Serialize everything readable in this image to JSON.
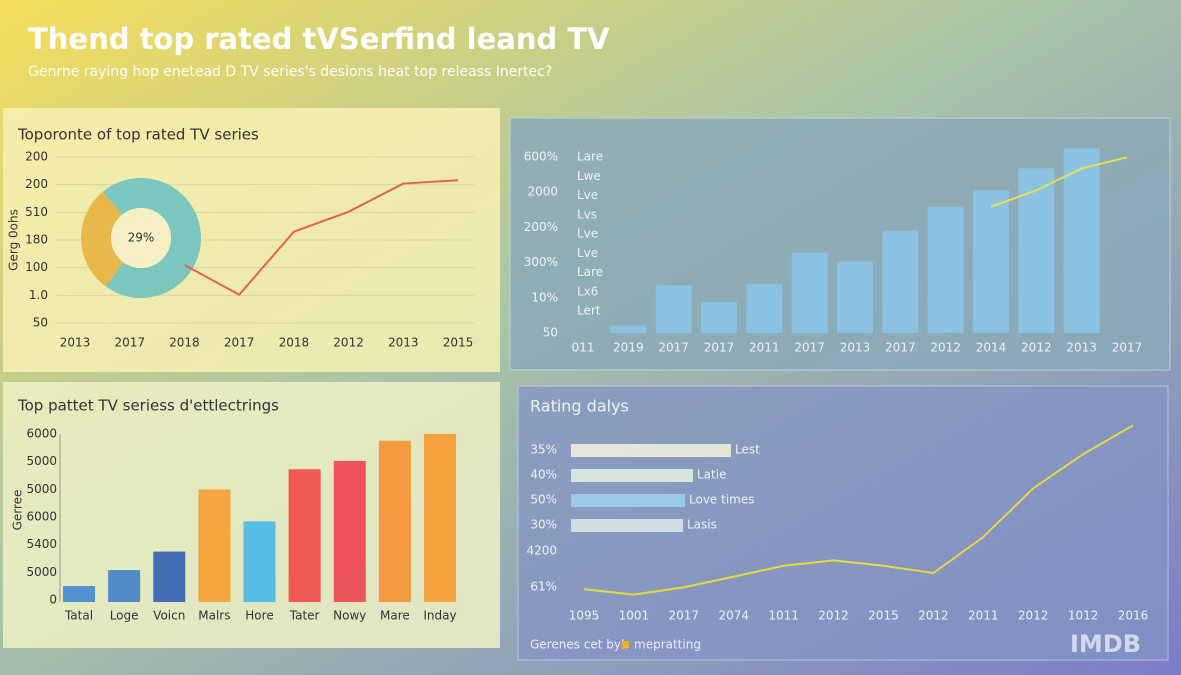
{
  "title": "Thend top rated tVSerfind leand TV",
  "subtitle": "Genrne raying hop enetead D TV series's desions heat top releass Inertec?",
  "footer": {
    "text": "Gerenes cet byl:",
    "legend": "mepratting",
    "color": "#f0b030"
  },
  "brand": "IMDB",
  "chart_data": [
    {
      "type": "line",
      "title": "Toporonte of top rated TV series",
      "y_label": "Gerg 0ohs",
      "y_labels": [
        "200",
        "200",
        "510",
        "180",
        "100",
        "1.0",
        "50"
      ],
      "categories": [
        "2013",
        "2017",
        "2018",
        "2017",
        "2018",
        "2012",
        "2013",
        "2015"
      ],
      "values": [
        null,
        null,
        35,
        17,
        55,
        67,
        84,
        86
      ],
      "color": "#e8604a",
      "ylim": [
        0,
        100
      ],
      "grid": true,
      "donut": {
        "values": [
          29,
          71
        ],
        "colors": [
          "#e8b84a",
          "#7cc6c0"
        ],
        "label": "29%"
      }
    },
    {
      "type": "bar",
      "y_labels": [
        "600%",
        "2000",
        "200%",
        "300%",
        "10%",
        "50"
      ],
      "side_labels": [
        "Lare",
        "Lwe",
        "Lve",
        "Lvs",
        "Lve",
        "Lve",
        "Lare",
        "Lx6",
        "Lert"
      ],
      "categories": [
        "011",
        "2019",
        "2017",
        "2017",
        "2011",
        "2017",
        "2013",
        "2017",
        "2012",
        "2014",
        "2012",
        "2013",
        "2017"
      ],
      "values": [
        null,
        4,
        26,
        17,
        27,
        44,
        39,
        56,
        69,
        78,
        90,
        101,
        null
      ],
      "color": "#8cc4e6",
      "ylim": [
        0,
        105
      ],
      "line": {
        "values": [
          null,
          null,
          null,
          null,
          null,
          null,
          null,
          null,
          null,
          69,
          78,
          90,
          96
        ],
        "color": "#e8e050"
      }
    },
    {
      "type": "bar",
      "title": "Top pattet TV seriess d'ettlectrings",
      "y_label": "Gerree",
      "y_labels": [
        "6000",
        "5000",
        "5000",
        "6000",
        "5400",
        "5000",
        "0"
      ],
      "categories": [
        "Tatal",
        "Loge",
        "Voicn",
        "Malrs",
        "Hore",
        "Tater",
        "Nowy",
        "Mare",
        "Inday"
      ],
      "values": [
        9.5,
        19,
        30,
        67,
        48,
        79,
        84,
        96,
        100
      ],
      "ylim": [
        0,
        100
      ],
      "colors": [
        "#3f88d0",
        "#3f7fc8",
        "#2f5fb0",
        "#f5a030",
        "#45b8e8",
        "#f04848",
        "#f04450",
        "#f59030",
        "#f59a30"
      ]
    },
    {
      "type": "line",
      "title": "Rating dalys",
      "y_labels": [
        "4200",
        "61%"
      ],
      "categories": [
        "1095",
        "1001",
        "2017",
        "2074",
        "1011",
        "2012",
        "2015",
        "2012",
        "2011",
        "2012",
        "1012",
        "2016"
      ],
      "values": [
        6,
        3,
        7,
        13,
        19,
        22,
        19,
        15,
        35,
        62,
        81,
        97
      ],
      "color": "#e8d840",
      "ylim": [
        0,
        100
      ],
      "hbars": {
        "labels": [
          "35%",
          "40%",
          "50%",
          "30%"
        ],
        "names": [
          "Lest",
          "Latie",
          "Love times",
          "Lasis"
        ],
        "values": [
          80,
          61,
          57,
          56
        ],
        "xlim": [
          0,
          100
        ],
        "colors": [
          "#f0f0d8",
          "#e0ecdc",
          "#9ccfec",
          "#d8e6e4"
        ]
      }
    }
  ]
}
